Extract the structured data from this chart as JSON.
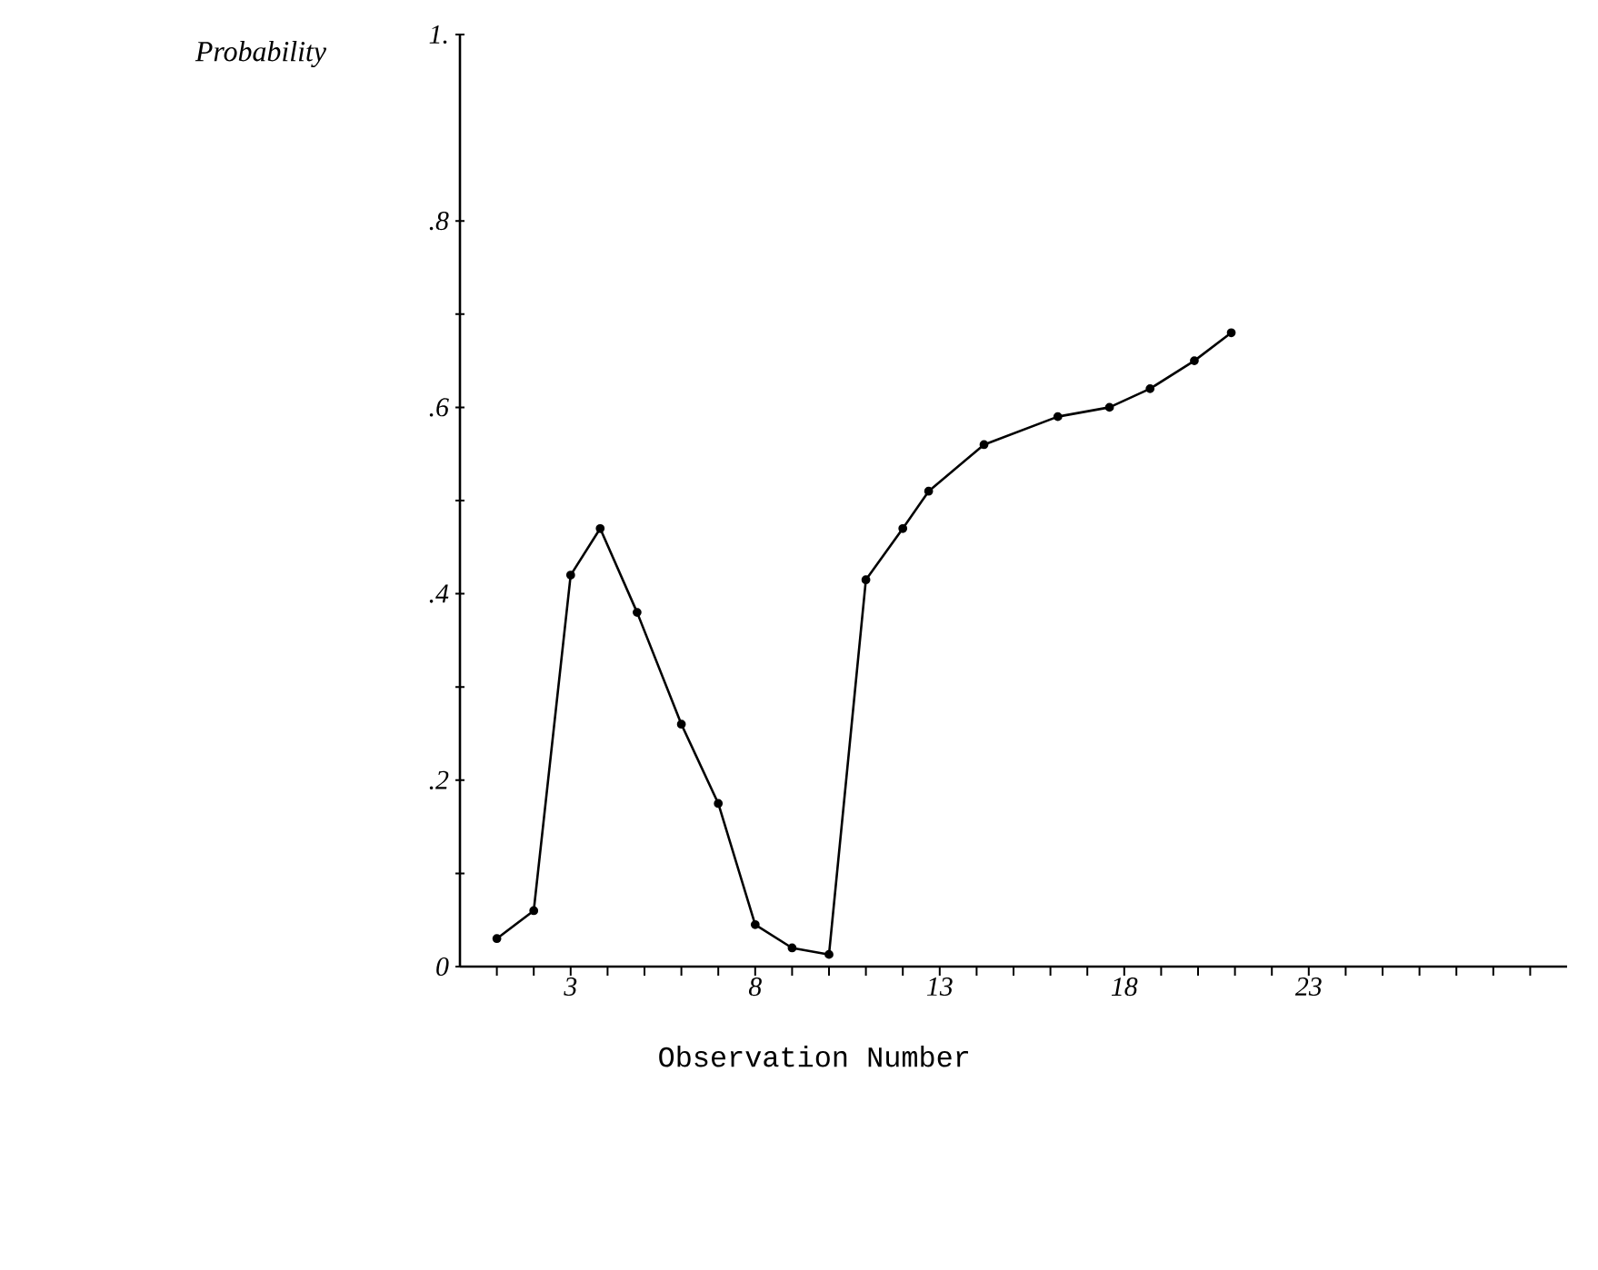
{
  "chart_data": {
    "type": "line",
    "xlabel": "Observation Number",
    "ylabel": "Probability",
    "x": [
      1,
      2,
      3,
      3.8,
      4.8,
      6,
      7,
      8,
      9,
      10,
      11,
      12,
      12.7,
      14.2,
      16.2,
      17.6,
      18.7,
      19.9,
      20.9
    ],
    "series": [
      {
        "color": "#000000",
        "values": [
          0.03,
          0.06,
          0.42,
          0.47,
          0.38,
          0.26,
          0.175,
          0.045,
          0.02,
          0.013,
          0.415,
          0.47,
          0.51,
          0.56,
          0.59,
          0.6,
          0.62,
          0.65,
          0.68
        ]
      }
    ],
    "xlim": [
      0,
      30
    ],
    "ylim": [
      0,
      1
    ],
    "xticks": [
      {
        "value": 1,
        "label": null
      },
      {
        "value": 2,
        "label": null
      },
      3,
      {
        "value": 4,
        "label": null
      },
      {
        "value": 5,
        "label": null
      },
      {
        "value": 6,
        "label": null
      },
      {
        "value": 7,
        "label": null
      },
      8,
      {
        "value": 9,
        "label": null
      },
      {
        "value": 10,
        "label": null
      },
      {
        "value": 11,
        "label": null
      },
      {
        "value": 12,
        "label": null
      },
      13,
      {
        "value": 14,
        "label": null
      },
      {
        "value": 15,
        "label": null
      },
      {
        "value": 16,
        "label": null
      },
      {
        "value": 17,
        "label": null
      },
      18,
      {
        "value": 19,
        "label": null
      },
      {
        "value": 20,
        "label": null
      },
      {
        "value": 21,
        "label": null
      },
      {
        "value": 22,
        "label": null
      },
      23,
      {
        "value": 24,
        "label": null
      },
      {
        "value": 25,
        "label": null
      },
      {
        "value": 26,
        "label": null
      },
      {
        "value": 27,
        "label": null
      },
      {
        "value": 28,
        "label": null
      },
      {
        "value": 29,
        "label": null
      }
    ],
    "yticks": [
      {
        "value": 0,
        "label": "0"
      },
      {
        "value": 0.1,
        "label": null
      },
      {
        "value": 0.2,
        "label": ".2"
      },
      {
        "value": 0.3,
        "label": null
      },
      {
        "value": 0.4,
        "label": ".4"
      },
      {
        "value": 0.5,
        "label": null
      },
      {
        "value": 0.6,
        "label": ".6"
      },
      {
        "value": 0.7,
        "label": null
      },
      {
        "value": 0.8,
        "label": ".8"
      },
      {
        "value": 1,
        "label": "1."
      }
    ],
    "marker": "circle",
    "line_style": "solid"
  }
}
